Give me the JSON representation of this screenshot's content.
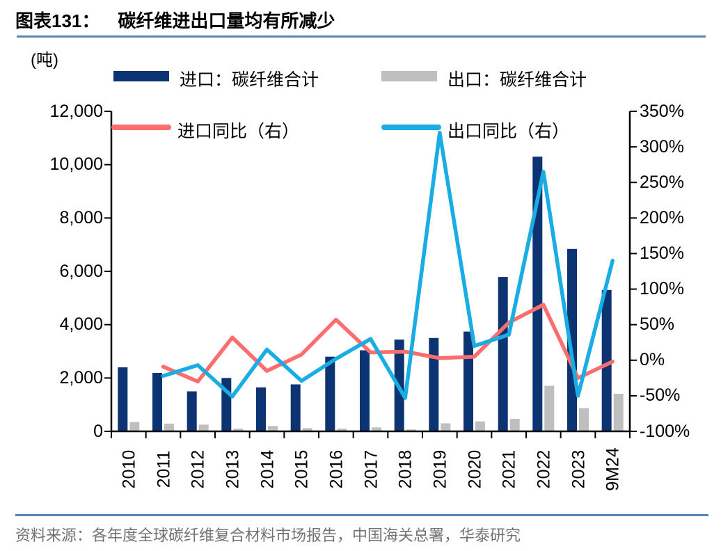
{
  "header": {
    "title_prefix": "图表131：",
    "title": "碳纤维进出口量均有所减少"
  },
  "footer": {
    "source": "资料来源：各年度全球碳纤维复合材料市场报告，中国海关总署，华泰研究"
  },
  "colors": {
    "import_bar": "#0d3472",
    "export_bar": "#bfbfbf",
    "import_yoy_line": "#fb6e6e",
    "export_yoy_line": "#1aade4",
    "separator": "#5b84b5",
    "axis": "#000000",
    "footer_text": "#737373"
  },
  "chart_data": {
    "type": "bar+line combo (dual axis)",
    "title": "碳纤维进出口量均有所减少",
    "unit_label": "(吨)",
    "grid": false,
    "legend_position": "top",
    "categories": [
      "2010",
      "2011",
      "2012",
      "2013",
      "2014",
      "2015",
      "2016",
      "2017",
      "2018",
      "2019",
      "2020",
      "2021",
      "2022",
      "2023",
      "9M24"
    ],
    "series": [
      {
        "name": "进口：碳纤维合计",
        "type": "bar",
        "axis": "left",
        "color": "#0d3472",
        "values": [
          2400,
          2190,
          1500,
          2000,
          1650,
          1760,
          2800,
          3040,
          3440,
          3500,
          3740,
          5790,
          10300,
          6840,
          5300
        ]
      },
      {
        "name": "出口：碳纤维合计",
        "type": "bar",
        "axis": "left",
        "color": "#bfbfbf",
        "values": [
          350,
          290,
          250,
          100,
          200,
          120,
          100,
          150,
          70,
          300,
          370,
          470,
          1710,
          870,
          1410
        ]
      },
      {
        "name": "进口同比（右）",
        "type": "line",
        "axis": "right",
        "color": "#fb6e6e",
        "values": [
          null,
          -9,
          -30,
          32,
          -15,
          8,
          57,
          11,
          12,
          3,
          5,
          53,
          78,
          -25,
          -2
        ]
      },
      {
        "name": "出口同比（右）",
        "type": "line",
        "axis": "right",
        "color": "#1aade4",
        "values": [
          null,
          -22,
          -7,
          -51,
          15,
          -29,
          2,
          30,
          -53,
          320,
          20,
          36,
          265,
          -50,
          140
        ]
      }
    ],
    "left_axis": {
      "min": 0,
      "max": 12000,
      "step": 2000,
      "tick_labels": [
        "0",
        "2,000",
        "4,000",
        "6,000",
        "8,000",
        "10,000",
        "12,000"
      ]
    },
    "right_axis": {
      "min": -100,
      "max": 350,
      "step": 50,
      "tick_labels": [
        "-100%",
        "-50%",
        "0%",
        "50%",
        "100%",
        "150%",
        "200%",
        "250%",
        "300%",
        "350%"
      ]
    }
  }
}
